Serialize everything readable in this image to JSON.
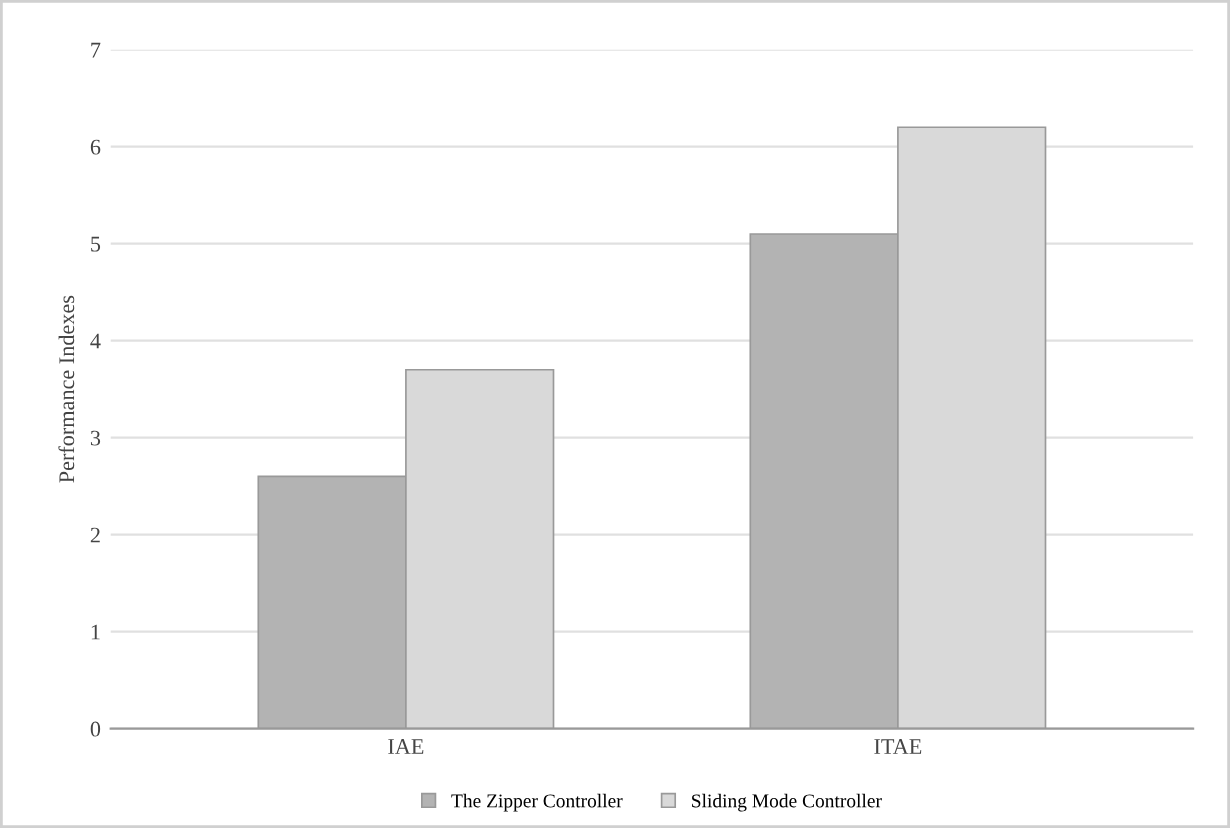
{
  "chart_data": {
    "type": "bar",
    "ylabel": "Performance Indexes",
    "categories": [
      "IAE",
      "ITAE"
    ],
    "series": [
      {
        "name": "The Zipper Controller",
        "color": "#b3b3b3",
        "values": [
          2.6,
          5.1
        ]
      },
      {
        "name": "Sliding Mode Controller",
        "color": "#d9d9d9",
        "values": [
          3.7,
          6.2
        ]
      }
    ],
    "ylim": [
      0,
      7
    ],
    "yticks": [
      0,
      1,
      2,
      3,
      4,
      5,
      6,
      7
    ],
    "grid": "y",
    "legend": "bottom"
  }
}
